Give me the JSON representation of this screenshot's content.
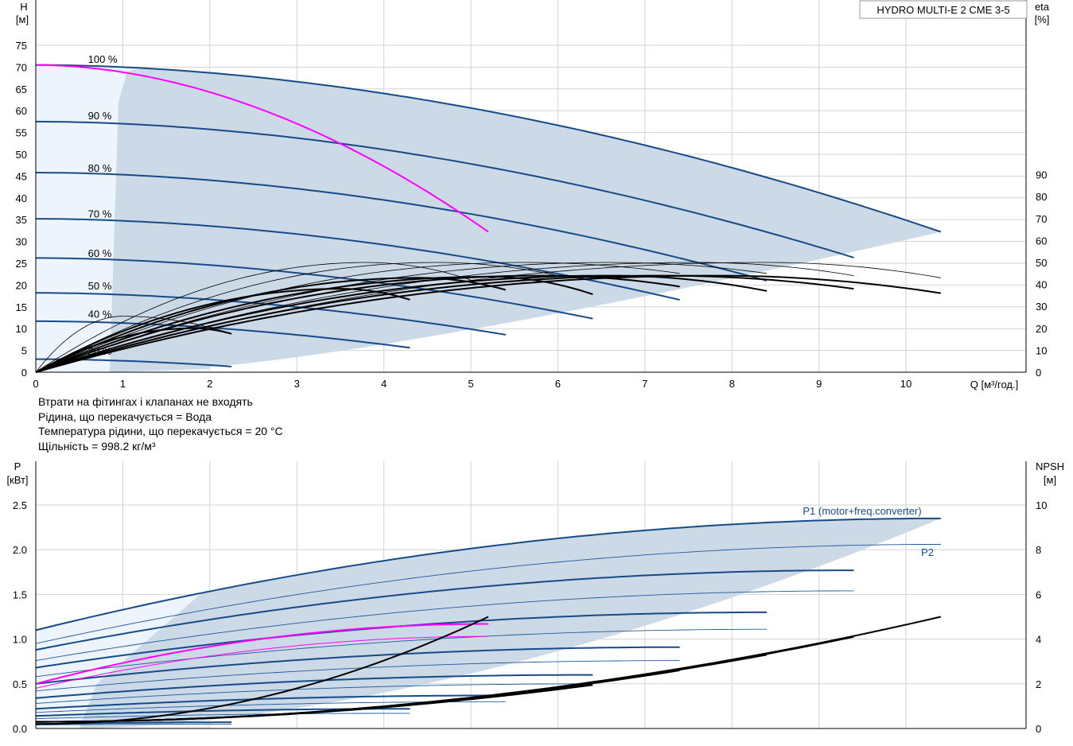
{
  "colors": {
    "grid": "#d3d3d3",
    "envelope": "#ccd9e6",
    "envelope_light": "#eef4fb",
    "curve": "#164b88",
    "thin_curve": "#1f5a9a",
    "highlight": "#ff00ff",
    "black": "#000000"
  },
  "notes": [
    "Втрати на фітингах і клапанах не входять",
    "Рідина, що перекачується = Вода",
    "Температура рідини, що перекачується = 20 °C",
    "Щільність = 998.2 кг/м³"
  ],
  "chart_data": [
    {
      "type": "line",
      "title": "HYDRO MULTI-E 2 CME 3-5",
      "ylabel": "H",
      "yunit": "[м]",
      "y2label": "eta",
      "y2unit": "[%]",
      "xlabel": "Q [м³/год.]",
      "xlim": [
        0,
        11.2
      ],
      "ylim": [
        0,
        80
      ],
      "y2lim": [
        0,
        140
      ],
      "xticks": [
        0,
        1,
        2,
        3,
        4,
        5,
        6,
        7,
        8,
        9,
        10
      ],
      "yticks": [
        0,
        5,
        10,
        15,
        20,
        25,
        30,
        35,
        40,
        45,
        50,
        55,
        60,
        65,
        70,
        75
      ],
      "y2ticks": [
        0,
        10,
        20,
        30,
        40,
        50,
        60,
        70,
        80,
        90
      ],
      "grid": true,
      "speed_labels": [
        {
          "label": "100 %",
          "x": 0.6,
          "y": 71
        },
        {
          "label": "90 %",
          "x": 0.6,
          "y": 58
        },
        {
          "label": "80 %",
          "x": 0.6,
          "y": 46
        },
        {
          "label": "70 %",
          "x": 0.6,
          "y": 35.5
        },
        {
          "label": "60 %",
          "x": 0.6,
          "y": 26.5
        },
        {
          "label": "50 %",
          "x": 0.6,
          "y": 19
        },
        {
          "label": "40 %",
          "x": 0.6,
          "y": 12.5
        },
        {
          "label": "20 %",
          "x": 0.6,
          "y": 4
        }
      ],
      "head_curves": [
        {
          "name": "100 %",
          "H0": 70.5,
          "qmax": 10.4,
          "Hend": 32.2
        },
        {
          "name": "90 %",
          "H0": 57.5,
          "qmax": 9.4,
          "Hend": 26.3
        },
        {
          "name": "80 %",
          "H0": 45.8,
          "qmax": 8.4,
          "Hend": 21
        },
        {
          "name": "70 %",
          "H0": 35.2,
          "qmax": 7.4,
          "Hend": 16.6
        },
        {
          "name": "60 %",
          "H0": 26.2,
          "qmax": 6.4,
          "Hend": 12.3
        },
        {
          "name": "50 %",
          "H0": 18.2,
          "qmax": 5.4,
          "Hend": 8.6
        },
        {
          "name": "40 %",
          "H0": 11.7,
          "qmax": 4.3,
          "Hend": 5.6
        },
        {
          "name": "20 %",
          "H0": 3.0,
          "qmax": 2.25,
          "Hend": 1.3
        }
      ],
      "system_curve": {
        "H0": 70.5,
        "qend": 5.2,
        "Hend": 32.2
      },
      "efficiency_curves_eta": [
        {
          "peak": 25.5,
          "qpeak": 1.0,
          "qend": 2.25,
          "eta_end": 17.5,
          "weight": "thin"
        },
        {
          "peak": 20.0,
          "qpeak": 1.8,
          "qend": 2.25,
          "eta_end": 17.5,
          "weight": "bold"
        },
        {
          "peak": 38.0,
          "qpeak": 3.5,
          "qend": 4.3,
          "eta_end": 33.0,
          "weight": "bold"
        },
        {
          "peak": 43.0,
          "qpeak": 4.4,
          "qend": 5.4,
          "eta_end": 37.5,
          "weight": "bold"
        },
        {
          "peak": 43.5,
          "qpeak": 5.2,
          "qend": 6.4,
          "eta_end": 35.5,
          "weight": "bold"
        },
        {
          "peak": 44.0,
          "qpeak": 5.8,
          "qend": 7.4,
          "eta_end": 39.0,
          "weight": "bold"
        },
        {
          "peak": 44.0,
          "qpeak": 6.6,
          "qend": 8.4,
          "eta_end": 37.0,
          "weight": "bold"
        },
        {
          "peak": 44.0,
          "qpeak": 7.2,
          "qend": 9.4,
          "eta_end": 38.0,
          "weight": "bold"
        },
        {
          "peak": 44.0,
          "qpeak": 7.8,
          "qend": 10.4,
          "eta_end": 36.0,
          "weight": "bold"
        },
        {
          "peak": 50.0,
          "qpeak": 3.8,
          "qend": 5.0,
          "eta_end": 42.0,
          "weight": "thin"
        },
        {
          "peak": 50.0,
          "qpeak": 4.6,
          "qend": 6.0,
          "eta_end": 44.0,
          "weight": "thin"
        },
        {
          "peak": 50.0,
          "qpeak": 5.6,
          "qend": 7.4,
          "eta_end": 45.0,
          "weight": "thin"
        },
        {
          "peak": 50.0,
          "qpeak": 6.6,
          "qend": 8.4,
          "eta_end": 45.0,
          "weight": "thin"
        },
        {
          "peak": 50.0,
          "qpeak": 7.6,
          "qend": 9.4,
          "eta_end": 44.0,
          "weight": "thin"
        },
        {
          "peak": 50.0,
          "qpeak": 8.4,
          "qend": 10.4,
          "eta_end": 43.0,
          "weight": "thin"
        }
      ]
    },
    {
      "type": "line",
      "ylabel": "P",
      "yunit": "[кВт]",
      "y2label": "NPSH",
      "y2unit": "[м]",
      "xlim": [
        0,
        11.2
      ],
      "ylim": [
        0,
        2.75
      ],
      "y2lim": [
        0,
        11
      ],
      "yticks": [
        "0.0",
        "0.5",
        "1.0",
        "1.5",
        "2.0",
        "2.5"
      ],
      "y2ticks": [
        0,
        2,
        4,
        6,
        8,
        10
      ],
      "grid": true,
      "series_labels": [
        "P1 (motor+freq.converter)",
        "P2"
      ],
      "power_curves": [
        {
          "name": "P1 100 %",
          "P0": 1.1,
          "qmax": 10.4,
          "Pend": 2.35,
          "weight": "bold"
        },
        {
          "name": "P2 100 %",
          "P0": 0.95,
          "qmax": 10.4,
          "Pend": 2.06,
          "weight": "thin"
        },
        {
          "name": "P1 90 %",
          "P0": 0.88,
          "qmax": 9.4,
          "Pend": 1.77,
          "weight": "bold"
        },
        {
          "name": "P2 90 %",
          "P0": 0.76,
          "qmax": 9.4,
          "Pend": 1.54,
          "weight": "thin"
        },
        {
          "name": "P1 80 %",
          "P0": 0.68,
          "qmax": 8.4,
          "Pend": 1.3,
          "weight": "bold"
        },
        {
          "name": "P2 80 %",
          "P0": 0.58,
          "qmax": 8.4,
          "Pend": 1.11,
          "weight": "thin"
        },
        {
          "name": "P1 70 %",
          "P0": 0.5,
          "qmax": 7.4,
          "Pend": 0.91,
          "weight": "bold"
        },
        {
          "name": "P2 70 %",
          "P0": 0.42,
          "qmax": 7.4,
          "Pend": 0.76,
          "weight": "thin"
        },
        {
          "name": "P1 60 %",
          "P0": 0.34,
          "qmax": 6.4,
          "Pend": 0.6,
          "weight": "bold"
        },
        {
          "name": "P2 60 %",
          "P0": 0.28,
          "qmax": 6.4,
          "Pend": 0.5,
          "weight": "thin"
        },
        {
          "name": "P1 50 %",
          "P0": 0.22,
          "qmax": 5.4,
          "Pend": 0.37,
          "weight": "bold"
        },
        {
          "name": "P2 50 %",
          "P0": 0.18,
          "qmax": 5.4,
          "Pend": 0.3,
          "weight": "thin"
        },
        {
          "name": "P1 40 %",
          "P0": 0.14,
          "qmax": 4.3,
          "Pend": 0.22,
          "weight": "bold"
        },
        {
          "name": "P2 40 %",
          "P0": 0.11,
          "qmax": 4.3,
          "Pend": 0.17,
          "weight": "thin"
        },
        {
          "name": "P1 20 %",
          "P0": 0.05,
          "qmax": 2.25,
          "Pend": 0.07,
          "weight": "bold"
        },
        {
          "name": "P2 20 %",
          "P0": 0.04,
          "qmax": 2.25,
          "Pend": 0.05,
          "weight": "thin"
        }
      ],
      "highlight_power": [
        {
          "P0": 0.5,
          "qend": 5.2,
          "Pend": 1.17
        },
        {
          "P0": 0.45,
          "qend": 5.2,
          "Pend": 1.03
        }
      ],
      "npsh_curves": [
        {
          "N0": 0.2,
          "qend": 5.2,
          "Nend": 5.0
        },
        {
          "N0": 0.3,
          "qend": 6.4,
          "Nend": 1.95
        },
        {
          "N0": 0.3,
          "qend": 7.4,
          "Nend": 2.6
        },
        {
          "N0": 0.3,
          "qend": 8.4,
          "Nend": 3.3
        },
        {
          "N0": 0.3,
          "qend": 9.4,
          "Nend": 4.1
        },
        {
          "N0": 0.3,
          "qend": 10.4,
          "Nend": 5.0
        }
      ]
    }
  ]
}
